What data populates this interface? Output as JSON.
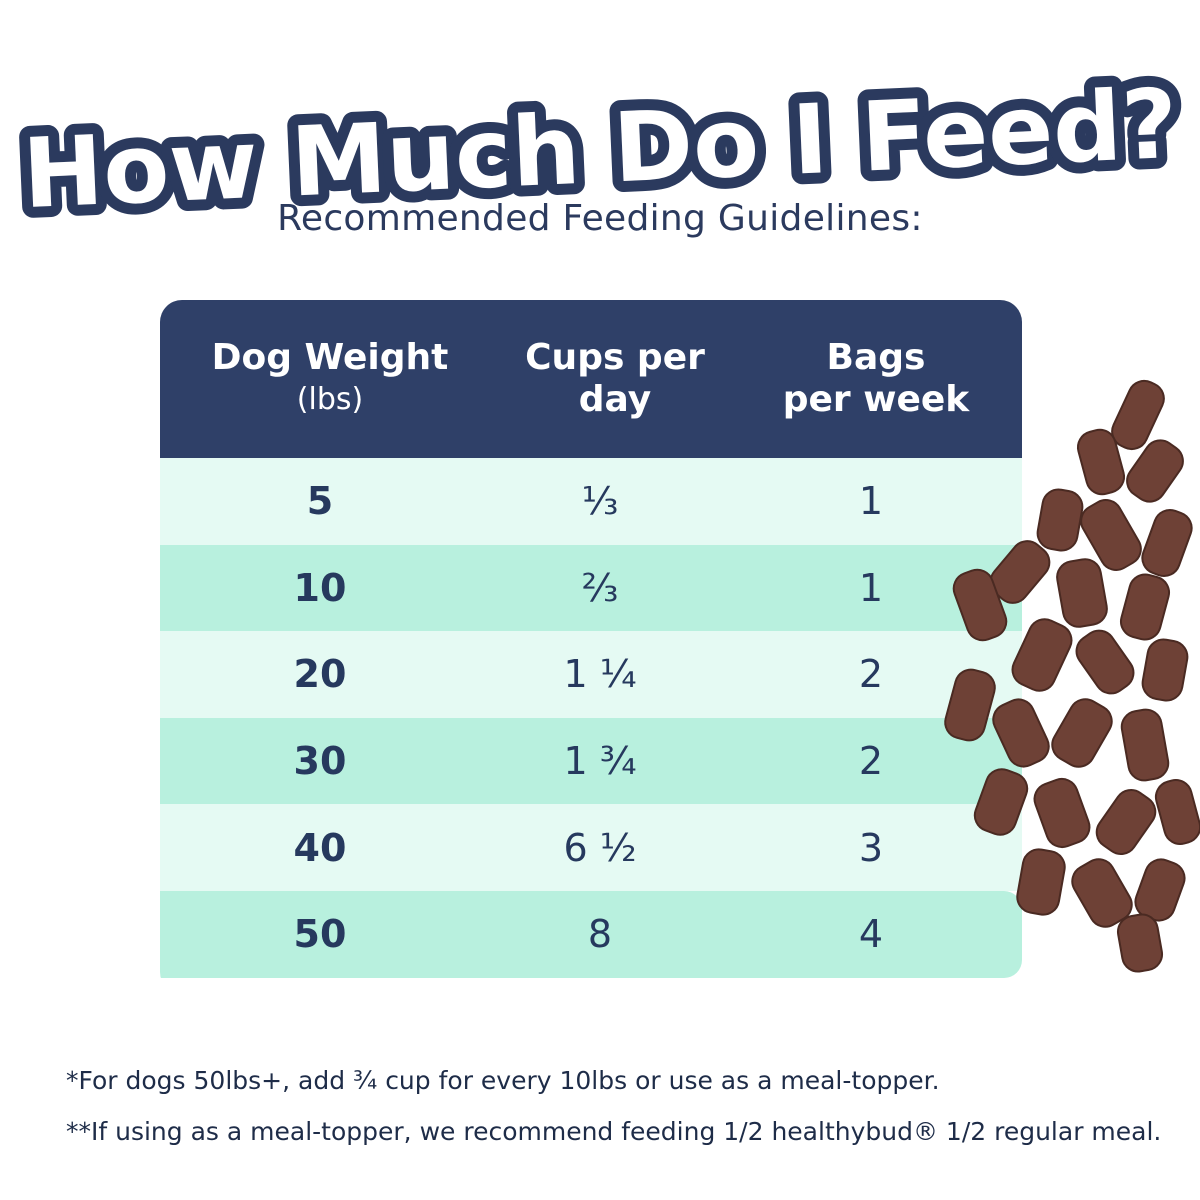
{
  "title": "How Much Do I Feed?",
  "subtitle": "Recommended Feeding Guidelines:",
  "table": {
    "headers": {
      "weight": "Dog Weight",
      "weight_unit": "(lbs)",
      "cups_line1": "Cups per",
      "cups_line2": "day",
      "bags_line1": "Bags",
      "bags_line2": "per week"
    },
    "rows": [
      {
        "weight": "5",
        "cups": "⅓",
        "bags": "1"
      },
      {
        "weight": "10",
        "cups": "⅔",
        "bags": "1"
      },
      {
        "weight": "20",
        "cups": "1 ¼",
        "bags": "2"
      },
      {
        "weight": "30",
        "cups": "1 ¾",
        "bags": "2"
      },
      {
        "weight": "40",
        "cups": "6 ½",
        "bags": "3"
      },
      {
        "weight": "50",
        "cups": "8",
        "bags": "4"
      }
    ]
  },
  "notes": [
    "*For dogs 50lbs+, add ¾ cup for every 10lbs or use as a meal-topper.",
    "**If using as a meal-topper, we recommend feeding 1/2 healthybud® 1/2 regular meal."
  ],
  "colors": {
    "navy": "#2f4068",
    "row_light": "#e5faf3",
    "row_dark": "#b8f0de",
    "kibble": "#6e4136"
  }
}
